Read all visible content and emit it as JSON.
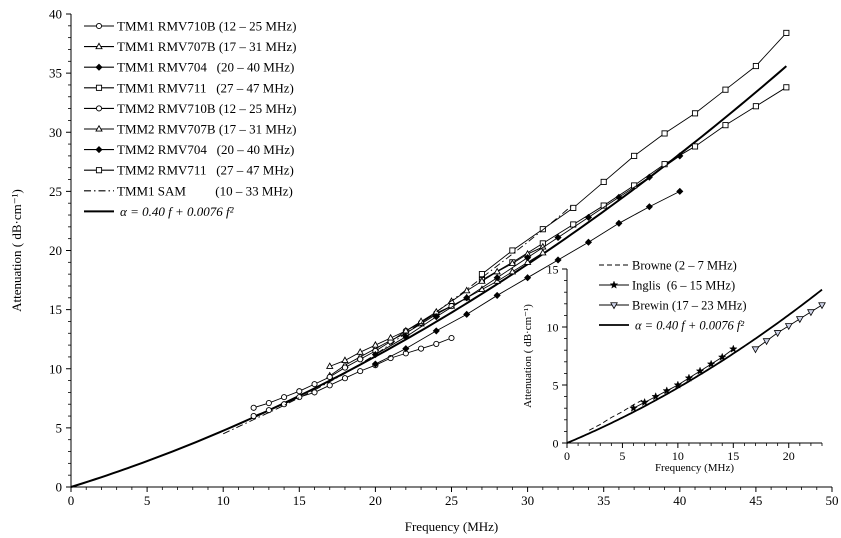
{
  "chart_data": [
    {
      "type": "line",
      "xlabel": "Frequency (MHz)",
      "ylabel": "Attenuation ( dB·cm⁻¹)",
      "xlim": [
        0,
        50
      ],
      "ylim": [
        0,
        40
      ],
      "xticks": [
        "0",
        "5",
        "10",
        "15",
        "20",
        "25",
        "30",
        "35",
        "40",
        "45",
        "50"
      ],
      "yticks": [
        "0",
        "5",
        "10",
        "15",
        "20",
        "25",
        "30",
        "35",
        "40"
      ],
      "grid": false,
      "legend_position": "top-left",
      "series": [
        {
          "name": "TMM1 RMV710B (12 – 25 MHz)",
          "marker": "circle",
          "x": [
            12,
            13,
            14,
            15,
            16,
            17,
            18,
            19,
            20,
            21,
            22,
            23,
            24,
            25
          ],
          "y": [
            6.0,
            6.5,
            7.0,
            7.6,
            8.0,
            8.6,
            9.2,
            9.8,
            10.3,
            10.9,
            11.3,
            11.7,
            12.1,
            12.6
          ]
        },
        {
          "name": "TMM1 RMV707B (17 – 31 MHz)",
          "marker": "triangle-up",
          "x": [
            17,
            18,
            19,
            20,
            21,
            22,
            23,
            24,
            25,
            26,
            27,
            28,
            29,
            30,
            31
          ],
          "y": [
            9.4,
            10.3,
            11.0,
            11.7,
            12.4,
            13.0,
            13.8,
            14.6,
            15.3,
            16.0,
            16.7,
            17.4,
            18.2,
            19.0,
            19.8
          ]
        },
        {
          "name": "TMM1 RMV704   (20 – 40 MHz)",
          "marker": "diamond",
          "x": [
            20,
            22,
            24,
            26,
            28,
            30,
            32,
            34,
            36,
            38,
            40
          ],
          "y": [
            10.4,
            11.7,
            13.2,
            14.6,
            16.2,
            17.7,
            19.2,
            20.7,
            22.3,
            23.7,
            25.0
          ]
        },
        {
          "name": "TMM1 RMV711   (27 – 47 MHz)",
          "marker": "square",
          "x": [
            27,
            29,
            31,
            33,
            35,
            37,
            39,
            41,
            43,
            45,
            47
          ],
          "y": [
            17.5,
            19.0,
            20.6,
            22.2,
            23.8,
            25.5,
            27.3,
            28.8,
            30.6,
            32.2,
            33.8
          ]
        },
        {
          "name": "TMM2 RMV710B (12 – 25 MHz)",
          "marker": "circle",
          "x": [
            12,
            13,
            14,
            15,
            16,
            17,
            18,
            19,
            20,
            21,
            22,
            23,
            24,
            25
          ],
          "y": [
            6.7,
            7.1,
            7.6,
            8.1,
            8.7,
            9.3,
            10.1,
            10.8,
            11.5,
            12.3,
            13.2,
            13.9,
            14.7,
            15.3
          ]
        },
        {
          "name": "TMM2 RMV707B (17 – 31 MHz)",
          "marker": "triangle-up",
          "x": [
            17,
            18,
            19,
            20,
            21,
            22,
            23,
            24,
            25,
            26,
            27,
            28,
            29,
            30,
            31
          ],
          "y": [
            10.2,
            10.7,
            11.4,
            12.0,
            12.6,
            13.2,
            14.0,
            14.8,
            15.7,
            16.6,
            17.4,
            18.2,
            18.9,
            19.7,
            20.3
          ]
        },
        {
          "name": "TMM2 RMV704   (20 – 40 MHz)",
          "marker": "diamond",
          "x": [
            20,
            22,
            24,
            26,
            28,
            30,
            32,
            34,
            36,
            38,
            40
          ],
          "y": [
            11.2,
            12.7,
            14.4,
            16.0,
            17.7,
            19.4,
            21.1,
            22.8,
            24.5,
            26.2,
            28.0
          ]
        },
        {
          "name": "TMM2 RMV711   (27 – 47 MHz)",
          "marker": "square",
          "x": [
            27,
            29,
            31,
            33,
            35,
            37,
            39,
            41,
            43,
            45,
            47
          ],
          "y": [
            18.0,
            20.0,
            21.8,
            23.6,
            25.8,
            28.0,
            29.9,
            31.6,
            33.6,
            35.6,
            38.4
          ]
        },
        {
          "name": "TMM1 SAM         (10 – 33 MHz)",
          "marker": "none",
          "dash": "dashdot",
          "x": [
            10,
            12,
            14,
            16,
            18,
            20,
            22,
            24,
            26,
            28,
            30,
            32,
            33
          ],
          "y": [
            4.5,
            5.7,
            6.9,
            8.2,
            9.6,
            11.2,
            13.0,
            14.8,
            16.7,
            18.7,
            20.7,
            22.8,
            23.9
          ]
        }
      ],
      "fit": {
        "label": "α = 0.40 f + 0.0076 f²",
        "a": 0.4,
        "b": 0.0076,
        "x_range": [
          0,
          47
        ]
      }
    },
    {
      "type": "line",
      "xlabel": "Frequency (MHz)",
      "ylabel": "Attenuation ( dB·cm⁻¹)",
      "xlim": [
        0,
        23
      ],
      "ylim": [
        0,
        15
      ],
      "xticks": [
        "0",
        "5",
        "10",
        "15",
        "20"
      ],
      "yticks": [
        "0",
        "5",
        "10",
        "15"
      ],
      "grid": false,
      "legend_position": "top-left",
      "series": [
        {
          "name": "Browne (2 – 7 MHz)",
          "marker": "none",
          "dash": "dashed",
          "x": [
            2,
            3,
            4,
            5,
            6,
            7
          ],
          "y": [
            1.1,
            1.6,
            2.2,
            2.7,
            3.3,
            3.8
          ]
        },
        {
          "name": "Inglis  (6 – 15 MHz)",
          "marker": "star",
          "x": [
            6,
            7,
            8,
            9,
            10,
            11,
            12,
            13,
            14,
            15
          ],
          "y": [
            3.0,
            3.5,
            4.0,
            4.5,
            5.0,
            5.6,
            6.2,
            6.8,
            7.4,
            8.1
          ]
        },
        {
          "name": "Brewin (17 – 23 MHz)",
          "marker": "triangle-down",
          "x": [
            17,
            18,
            19,
            20,
            21,
            22,
            23
          ],
          "y": [
            8.1,
            8.8,
            9.5,
            10.1,
            10.7,
            11.3,
            11.9
          ]
        }
      ],
      "fit": {
        "label": "α = 0.40 f + 0.0076 f²",
        "a": 0.4,
        "b": 0.0076,
        "x_range": [
          0,
          23
        ]
      }
    }
  ]
}
